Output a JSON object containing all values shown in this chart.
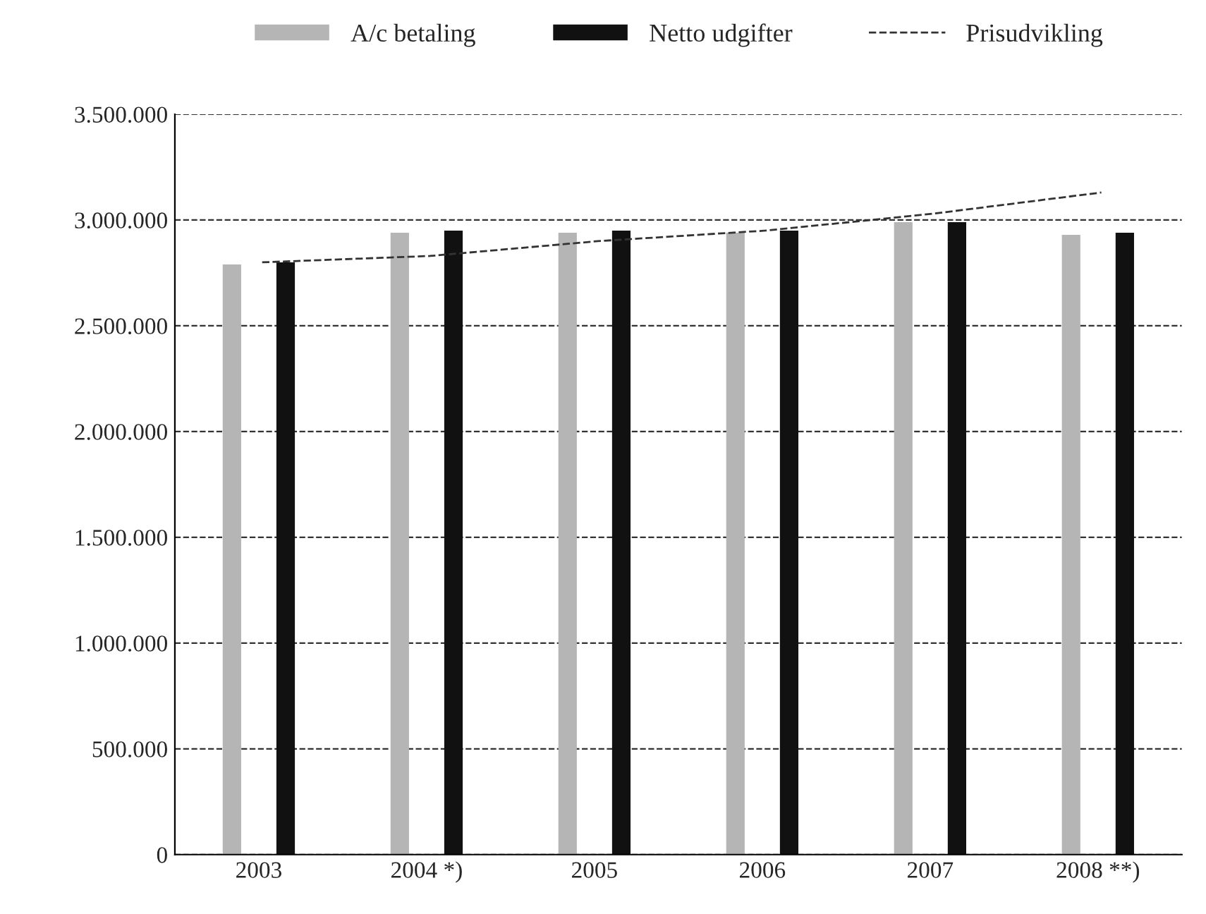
{
  "chart_data": {
    "type": "bar",
    "categories": [
      "2003",
      "2004 *)",
      "2005",
      "2006",
      "2007",
      "2008 **)"
    ],
    "series": [
      {
        "name": "A/c betaling",
        "color": "#b5b5b5",
        "values": [
          2790000,
          2940000,
          2940000,
          2940000,
          2990000,
          2930000
        ]
      },
      {
        "name": "Netto udgifter",
        "color": "#111111",
        "values": [
          2800000,
          2950000,
          2950000,
          2950000,
          2990000,
          2940000
        ]
      },
      {
        "name": "Prisudvikling",
        "type": "line",
        "color": "#333333",
        "line_style": "dashed",
        "values": [
          2800000,
          2830000,
          2900000,
          2950000,
          3030000,
          3130000
        ]
      }
    ],
    "ylim": [
      0,
      3500000
    ],
    "yticks": [
      {
        "value": 0,
        "label": "0"
      },
      {
        "value": 500000,
        "label": "500.000"
      },
      {
        "value": 1000000,
        "label": "1.000.000"
      },
      {
        "value": 1500000,
        "label": "1.500.000"
      },
      {
        "value": 2000000,
        "label": "2.000.000"
      },
      {
        "value": 2500000,
        "label": "2.500.000"
      },
      {
        "value": 3000000,
        "label": "3.000.000"
      },
      {
        "value": 3500000,
        "label": "3.500.000"
      }
    ],
    "grid": "y",
    "legend": "top",
    "marker": "none"
  }
}
